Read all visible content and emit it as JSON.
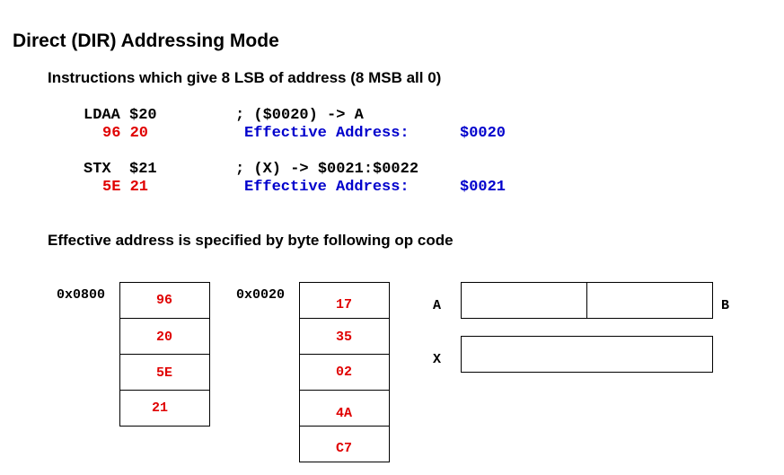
{
  "title": "Direct (DIR) Addressing Mode",
  "subtitle": "Instructions which give 8 LSB of address (8 MSB all 0)",
  "instructions": [
    {
      "asm": "LDAA $20",
      "comment": "; ($0020) -> A",
      "opcode": "96 20",
      "ea_label": "Effective Address:",
      "ea_value": "$0020"
    },
    {
      "asm": "STX  $21",
      "comment": "; (X) -> $0021:$0022",
      "opcode": "5E 21",
      "ea_label": "Effective Address:",
      "ea_value": "$0021"
    }
  ],
  "note": "Effective address is specified by byte following op code",
  "memory1": {
    "address": "0x0800",
    "bytes": [
      "96",
      "20",
      "5E",
      "21"
    ]
  },
  "memory2": {
    "address": "0x0020",
    "bytes": [
      "17",
      "35",
      "02",
      "4A",
      "C7"
    ]
  },
  "registers": {
    "a_label": "A",
    "b_label": "B",
    "x_label": "X"
  },
  "colors": {
    "opcode": "#e00000",
    "effective_address": "#0000cc"
  }
}
